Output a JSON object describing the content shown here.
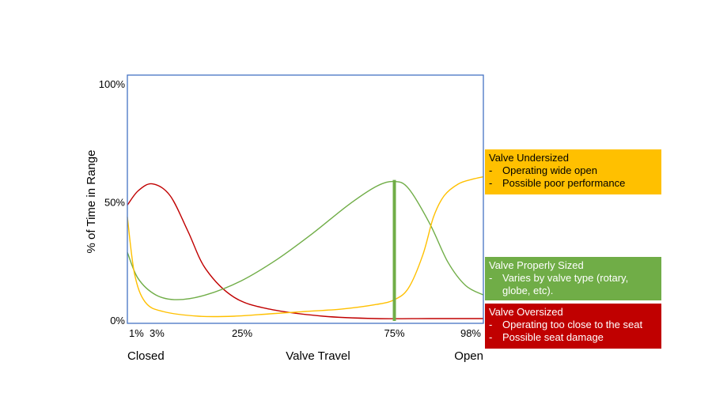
{
  "chart_data": {
    "type": "line",
    "title": "",
    "xlabel": "Valve Travel",
    "ylabel": "% of Time in Range",
    "xlim": [
      0,
      100
    ],
    "ylim": [
      0,
      100
    ],
    "x_ticks": [
      {
        "value": 1,
        "label": "1%"
      },
      {
        "value": 3,
        "label": "3%"
      },
      {
        "value": 25,
        "label": "25%"
      },
      {
        "value": 75,
        "label": "75%"
      },
      {
        "value": 98,
        "label": "98%"
      }
    ],
    "y_ticks": [
      {
        "value": 0,
        "label": "0%"
      },
      {
        "value": 50,
        "label": "50%"
      },
      {
        "value": 100,
        "label": "100%"
      }
    ],
    "x_end_labels": {
      "left": "Closed",
      "right": "Open"
    },
    "series": [
      {
        "color": "#C00000",
        "x": [
          0,
          3,
          7,
          12,
          17,
          22,
          30,
          40,
          55,
          70,
          85,
          100
        ],
        "y": [
          49,
          55,
          58,
          53,
          38,
          22,
          10,
          5,
          2,
          1,
          1,
          1
        ]
      },
      {
        "color": "#70AD47",
        "x": [
          0,
          3,
          8,
          14,
          22,
          32,
          42,
          52,
          62,
          70,
          75,
          79,
          85,
          90,
          95,
          100
        ],
        "y": [
          29,
          18,
          11,
          9,
          11,
          17,
          26,
          37,
          49,
          57,
          59,
          56,
          41,
          25,
          15,
          11
        ]
      },
      {
        "color": "#FFC000",
        "x": [
          0,
          2,
          5,
          10,
          20,
          30,
          40,
          50,
          60,
          70,
          75,
          79,
          83,
          86,
          89,
          93,
          97,
          100
        ],
        "y": [
          44,
          20,
          8,
          4,
          2,
          2,
          3,
          4,
          5,
          7,
          9,
          14,
          28,
          44,
          53,
          58,
          60,
          61
        ]
      }
    ],
    "marker_line": {
      "x": 75,
      "y0": 0,
      "y1": 59,
      "color": "#70AD47"
    },
    "colors": {
      "frame": "#4472C4",
      "undersized": "#FFC000",
      "proper": "#70AD47",
      "oversized": "#C00000"
    }
  },
  "legend": {
    "undersized": {
      "title": "Valve Undersized",
      "bullets": [
        "Operating wide open",
        "Possible poor performance"
      ]
    },
    "proper": {
      "title": "Valve Properly Sized",
      "bullets": [
        "Varies by valve type (rotary, globe, etc)."
      ]
    },
    "oversized": {
      "title": "Valve Oversized",
      "bullets": [
        "Operating too close to the seat",
        "Possible seat damage"
      ]
    }
  }
}
